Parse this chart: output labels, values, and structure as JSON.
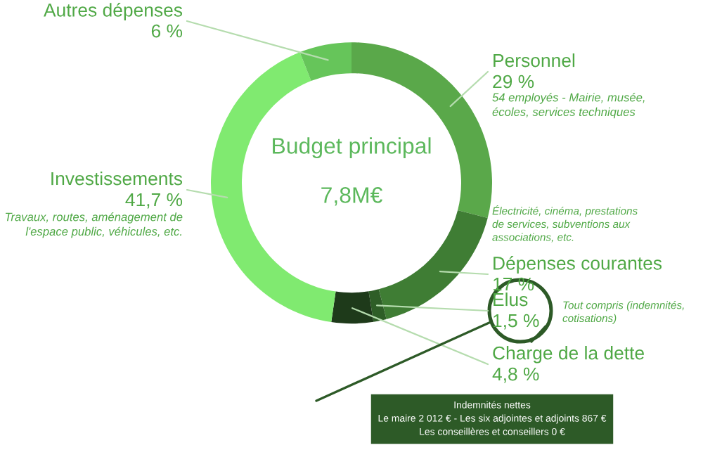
{
  "chart_data": {
    "type": "donut",
    "title": "Budget principal",
    "subtitle": "7,8M€",
    "categories": [
      "Personnel",
      "Dépenses courantes",
      "Élus",
      "Charge de la dette",
      "Investissements",
      "Autres dépenses"
    ],
    "values": [
      29,
      17,
      1.5,
      4.8,
      41.7,
      6
    ],
    "value_labels": [
      "29 %",
      "17 %",
      "1,5 %",
      "4,8 %",
      "41,7 %",
      "6 %"
    ],
    "colors": [
      "#5aa84a",
      "#3f7d34",
      "#2e5e27",
      "#1e3a1a",
      "#80ea70",
      "#66c55a"
    ],
    "annotations": [
      "54 employés - Mairie, musée,\nécoles, services techniques",
      "Électricité, cinéma, prestations\nde services, subventions aux\nassociations, etc.",
      "Tout compris (indemnités,\ncotisations)",
      "Travaux, routes, aménagement de\nl'espace public, véhicules, etc.",
      "Indemnités nettes\nLe maire 2 012 € - Les six adjointes et adjoints 867 €\nLes conseillères et conseillers 0 €"
    ],
    "legend": false
  }
}
